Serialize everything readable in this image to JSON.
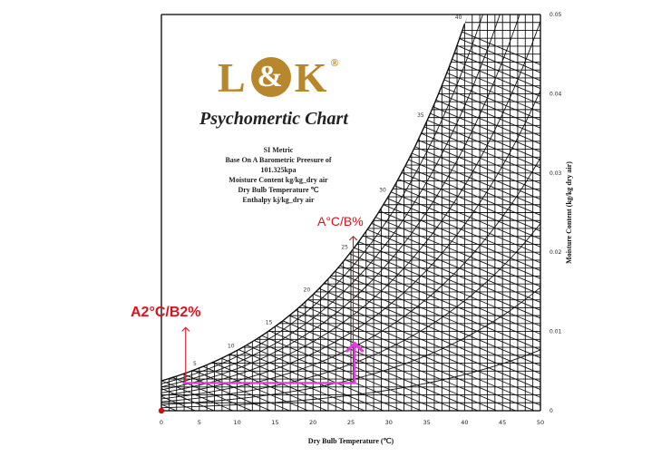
{
  "logo": {
    "letters_left": "L",
    "ampersand": "&",
    "letters_right": "K",
    "registered": "®"
  },
  "title": "Psychomertic Chart",
  "info_lines": [
    "SI Metric",
    "Base On A Barometric Preesure of",
    "101.325kpa",
    "Moisture Content kg/kg_dry air",
    "Dry Bulb Temperature ℃",
    "Enthalpy kj/kg_dry air"
  ],
  "annotations": {
    "left": "A2°C/B2%",
    "right": "A°C/B%"
  },
  "colors": {
    "grid": "#111111",
    "annotation_red": "#d9141c",
    "process_line": "#e23be0",
    "logo_gold": "#b8862b",
    "point": "#cc1111"
  },
  "chart_data": {
    "type": "line",
    "title": "Psychomertic Chart",
    "xlabel": "Dry Bulb Temperature (℃)",
    "ylabel": "Moisture Content (kg/kg dry air)",
    "xlim": [
      0,
      50
    ],
    "ylim": [
      0,
      0.05
    ],
    "x_ticks": [
      "0",
      "5",
      "10",
      "15",
      "20",
      "25",
      "30",
      "35",
      "40",
      "45",
      "50"
    ],
    "y_ticks": [
      "0",
      "0.01",
      "0.02",
      "0.03",
      "0.04",
      "0.05"
    ],
    "saturation_curve": {
      "x": [
        0,
        5,
        10,
        15,
        20,
        25,
        30,
        35,
        40
      ],
      "y": [
        0.0038,
        0.0054,
        0.0076,
        0.0106,
        0.0147,
        0.0201,
        0.0273,
        0.0367,
        0.0491
      ]
    },
    "saturation_temperature_labels": [
      "5",
      "10",
      "15",
      "20",
      "25",
      "30",
      "35",
      "40"
    ],
    "process_path": {
      "x": [
        2.8,
        25.5,
        25.5
      ],
      "y": [
        0.0035,
        0.0035,
        0.0085
      ]
    },
    "arrows": [
      {
        "x": 3.2,
        "y_from": 0.0035,
        "y_to": 0.0105
      },
      {
        "x": 25.3,
        "y_from": 0.0035,
        "y_to": 0.022
      }
    ],
    "origin_point": {
      "x": 0,
      "y": 0
    }
  }
}
